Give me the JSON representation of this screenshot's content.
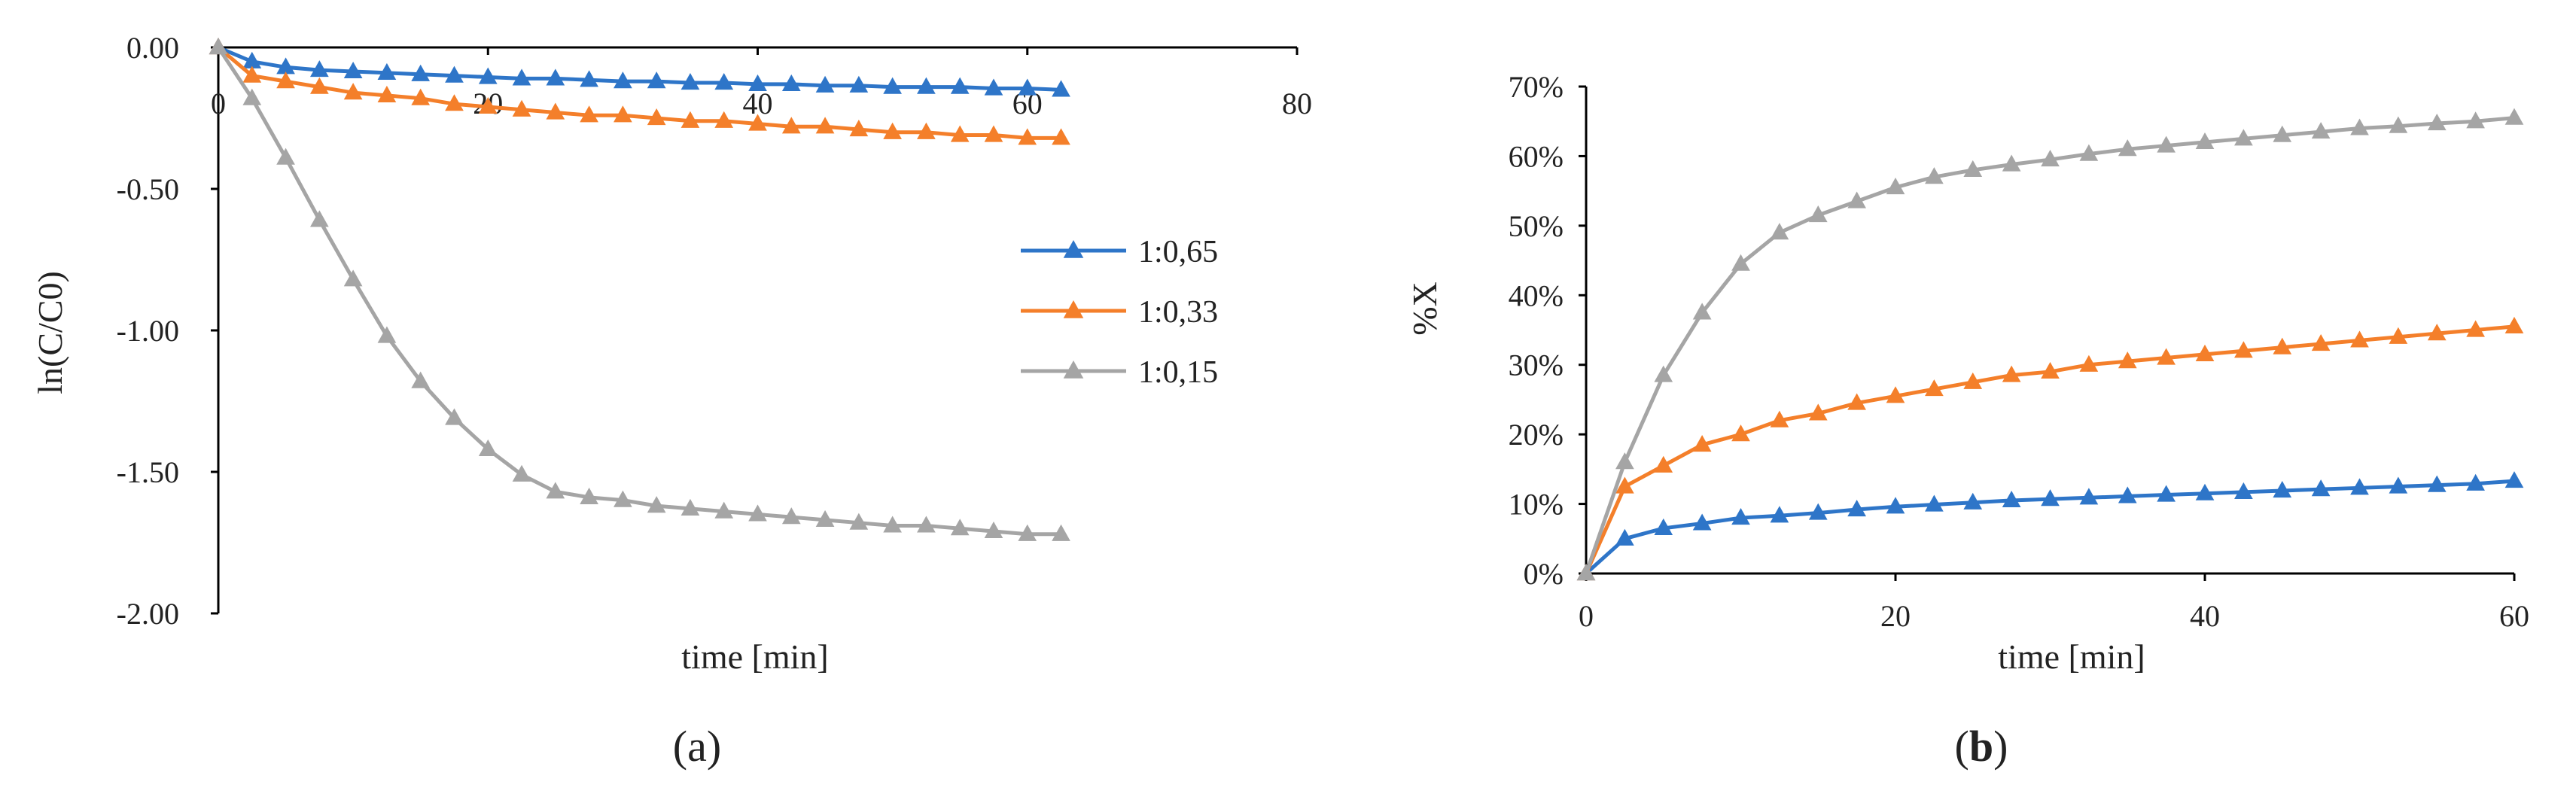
{
  "colors": {
    "series_1": "#2E75C8",
    "series_2": "#F47F2A",
    "series_3": "#A5A5A5",
    "axis": "#000000"
  },
  "panel_labels": {
    "a": {
      "open": "(",
      "letter": "a",
      "close": ")"
    },
    "b": {
      "open": "(",
      "letter": "b",
      "close": ")"
    }
  },
  "chart_data": [
    {
      "type": "line",
      "panel": "a",
      "xlabel": "time [min]",
      "ylabel": "ln(C/C0)",
      "xlim": [
        0,
        80
      ],
      "ylim": [
        -2.0,
        0.0
      ],
      "x_ticks": [
        "0",
        "20",
        "40",
        "60",
        "80"
      ],
      "y_ticks": [
        "0.00",
        "-0.50",
        "-1.00",
        "-1.50",
        "-2.00"
      ],
      "x_axis_position": "top (y = 0)",
      "grid": false,
      "legend": "right, inside",
      "x": [
        0,
        2.5,
        5,
        7.5,
        10,
        12.5,
        15,
        17.5,
        20,
        22.5,
        25,
        27.5,
        30,
        32.5,
        35,
        37.5,
        40,
        42.5,
        45,
        47.5,
        50,
        52.5,
        55,
        57.5,
        60,
        62.5
      ],
      "series": [
        {
          "name": "1:0,65",
          "color": "#2E75C8",
          "values": [
            0,
            -0.05,
            -0.07,
            -0.08,
            -0.085,
            -0.09,
            -0.095,
            -0.1,
            -0.105,
            -0.11,
            -0.11,
            -0.115,
            -0.12,
            -0.12,
            -0.125,
            -0.125,
            -0.13,
            -0.13,
            -0.135,
            -0.135,
            -0.14,
            -0.14,
            -0.14,
            -0.145,
            -0.145,
            -0.15
          ]
        },
        {
          "name": "1:0,33",
          "color": "#F47F2A",
          "values": [
            0,
            -0.1,
            -0.12,
            -0.14,
            -0.16,
            -0.17,
            -0.18,
            -0.2,
            -0.21,
            -0.22,
            -0.23,
            -0.24,
            -0.24,
            -0.25,
            -0.26,
            -0.26,
            -0.27,
            -0.28,
            -0.28,
            -0.29,
            -0.3,
            -0.3,
            -0.31,
            -0.31,
            -0.32,
            -0.32
          ]
        },
        {
          "name": "1:0,15",
          "color": "#A5A5A5",
          "values": [
            0,
            -0.18,
            -0.39,
            -0.61,
            -0.82,
            -1.02,
            -1.18,
            -1.31,
            -1.42,
            -1.51,
            -1.57,
            -1.59,
            -1.6,
            -1.62,
            -1.63,
            -1.64,
            -1.65,
            -1.66,
            -1.67,
            -1.68,
            -1.69,
            -1.69,
            -1.7,
            -1.71,
            -1.72,
            -1.72
          ]
        }
      ]
    },
    {
      "type": "line",
      "panel": "b",
      "xlabel": "time [min]",
      "ylabel": "%X",
      "xlim": [
        0,
        60
      ],
      "ylim": [
        0,
        0.7
      ],
      "x_ticks": [
        "0",
        "20",
        "40",
        "60"
      ],
      "y_ticks": [
        "0%",
        "10%",
        "20%",
        "30%",
        "40%",
        "50%",
        "60%",
        "70%"
      ],
      "grid": false,
      "legend": "none",
      "x": [
        0,
        2.5,
        5,
        7.5,
        10,
        12.5,
        15,
        17.5,
        20,
        22.5,
        25,
        27.5,
        30,
        32.5,
        35,
        37.5,
        40,
        42.5,
        45,
        47.5,
        50,
        52.5,
        55,
        57.5,
        60
      ],
      "series": [
        {
          "color": "#2E75C8",
          "values": [
            0,
            0.05,
            0.065,
            0.072,
            0.08,
            0.083,
            0.087,
            0.092,
            0.096,
            0.099,
            0.102,
            0.105,
            0.107,
            0.109,
            0.111,
            0.113,
            0.115,
            0.117,
            0.119,
            0.121,
            0.123,
            0.125,
            0.127,
            0.129,
            0.133
          ]
        },
        {
          "color": "#F47F2A",
          "values": [
            0,
            0.125,
            0.155,
            0.185,
            0.2,
            0.22,
            0.23,
            0.245,
            0.255,
            0.265,
            0.275,
            0.285,
            0.29,
            0.3,
            0.305,
            0.31,
            0.315,
            0.32,
            0.325,
            0.33,
            0.335,
            0.34,
            0.345,
            0.35,
            0.355
          ]
        },
        {
          "color": "#A5A5A5",
          "values": [
            0,
            0.16,
            0.285,
            0.375,
            0.445,
            0.49,
            0.515,
            0.535,
            0.555,
            0.57,
            0.58,
            0.588,
            0.595,
            0.603,
            0.61,
            0.615,
            0.62,
            0.625,
            0.63,
            0.635,
            0.64,
            0.643,
            0.647,
            0.65,
            0.655
          ]
        }
      ]
    }
  ]
}
